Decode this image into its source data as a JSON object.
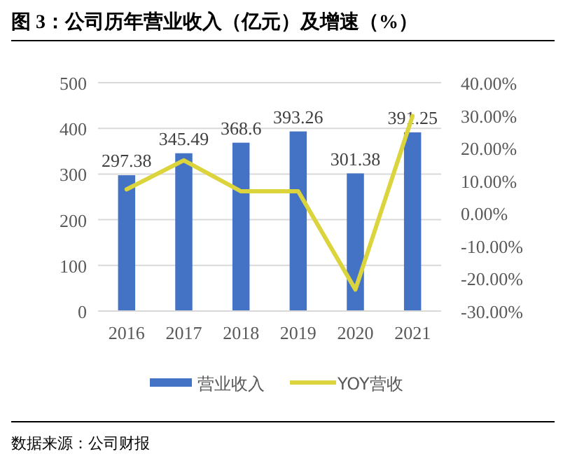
{
  "chart_data": {
    "type": "bar",
    "title": "图 3：公司历年营业收入（亿元）及增速（%）",
    "categories": [
      "2016",
      "2017",
      "2018",
      "2019",
      "2020",
      "2021"
    ],
    "series": [
      {
        "name": "营业收入",
        "color": "#4472c4",
        "values": [
          297.38,
          345.49,
          368.6,
          393.26,
          301.38,
          391.25
        ],
        "value_labels": [
          "297.38",
          "345.49",
          "368.6",
          "393.26",
          "301.38",
          "391.25"
        ]
      },
      {
        "name": "YOY营收",
        "type": "line",
        "axis": "y2",
        "color": "#dcd43c",
        "values": [
          7.3,
          16.2,
          6.7,
          6.7,
          -23.4,
          29.8
        ]
      }
    ],
    "ylim": [
      0,
      500
    ],
    "yticks": [
      0,
      100,
      200,
      300,
      400,
      500
    ],
    "y2lim": [
      -30,
      40
    ],
    "y2ticks": [
      {
        "value": -30,
        "label": "-30.00%"
      },
      {
        "value": -20,
        "label": "-20.00%"
      },
      {
        "value": -10,
        "label": "-10.00%"
      },
      {
        "value": 0,
        "label": "0.00%"
      },
      {
        "value": 10,
        "label": "10.00%"
      },
      {
        "value": 20,
        "label": "20.00%"
      },
      {
        "value": 30,
        "label": "30.00%"
      },
      {
        "value": 40,
        "label": "40.00%"
      }
    ],
    "grid": "y",
    "legend": "bottom",
    "marker": "none",
    "annotations": [
      "数据来源：公司财报"
    ]
  }
}
